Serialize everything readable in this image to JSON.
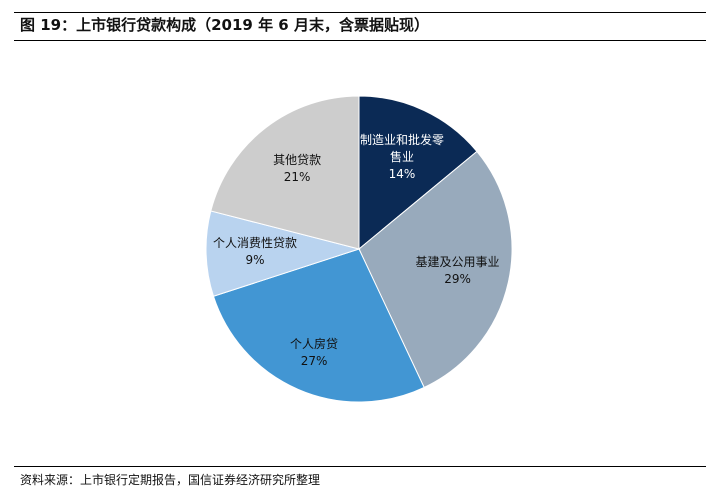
{
  "title": "图 19：上市银行贷款构成（2019 年 6 月末，含票据贴现）",
  "source": "资料来源：上市银行定期报告，国信证券经济研究所整理",
  "chart_data": {
    "type": "pie",
    "title": "上市银行贷款构成（2019 年 6 月末，含票据贴现）",
    "start": "top",
    "direction": "clockwise",
    "slices": [
      {
        "label": "制造业和批发零售业",
        "value": 14,
        "value_label": "14%",
        "color": "#0b2a55",
        "text_color": "#ffffff"
      },
      {
        "label": "基建及公用事业",
        "value": 29,
        "value_label": "29%",
        "color": "#98aabc",
        "text_color": "#111111"
      },
      {
        "label": "个人房贷",
        "value": 27,
        "value_label": "27%",
        "color": "#4296d3",
        "text_color": "#111111"
      },
      {
        "label": "个人消费性贷款",
        "value": 9,
        "value_label": "9%",
        "color": "#b9d3ef",
        "text_color": "#111111"
      },
      {
        "label": "其他贷款",
        "value": 21,
        "value_label": "21%",
        "color": "#cdcdcd",
        "text_color": "#111111"
      }
    ]
  }
}
